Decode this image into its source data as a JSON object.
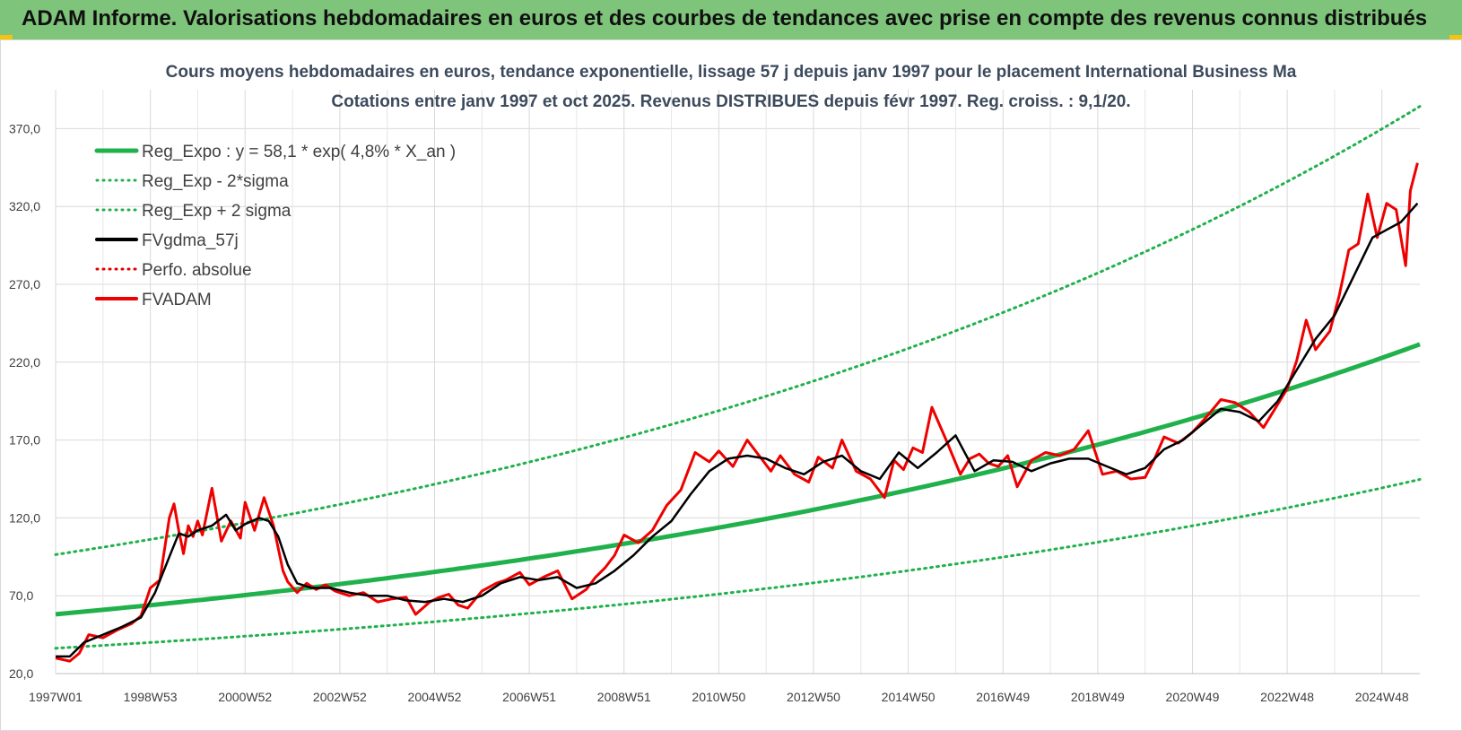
{
  "banner": {
    "title": "ADAM Informe. Valorisations hebdomadaires en euros et des courbes de tendances avec prise en compte des revenus connus distribués"
  },
  "chart_data": {
    "type": "line",
    "title_line1": "Cours moyens hebdomadaires en euros, tendance exponentielle, lissage 57 j depuis janv 1997 pour le placement International Business Ma",
    "title_line2": "Cotations entre janv 1997 et oct 2025. Revenus DISTRIBUES depuis févr 1997. Reg. croiss. : 9,1/20.",
    "x_range": [
      1997.0,
      2025.8
    ],
    "ylim": [
      20,
      395
    ],
    "y_ticks": [
      20,
      70,
      120,
      170,
      220,
      270,
      320,
      370
    ],
    "y_tick_labels": [
      "20,0",
      "70,0",
      "120,0",
      "170,0",
      "220,0",
      "270,0",
      "320,0",
      "370,0"
    ],
    "x_ticks": [
      1997.0,
      1999.0,
      2001.0,
      2003.0,
      2005.0,
      2007.0,
      2009.0,
      2011.0,
      2013.0,
      2015.0,
      2017.0,
      2019.0,
      2021.0,
      2023.0,
      2025.0
    ],
    "x_tick_labels": [
      "1997W01",
      "1998W53",
      "2000W52",
      "2002W52",
      "2004W52",
      "2006W51",
      "2008W51",
      "2010W50",
      "2012W50",
      "2014W50",
      "2016W49",
      "2018W49",
      "2020W49",
      "2022W48",
      "2024W48"
    ],
    "grid": true,
    "legend_position": "top-left",
    "regression": {
      "a": 58.1,
      "rate": 0.048,
      "sigma_upper_factor": 1.66,
      "sigma_lower_factor": 0.625
    },
    "series": [
      {
        "name": "Reg_Expo : y = 58,1 * exp( 4,8% *  X_an )",
        "color": "#21b14c",
        "style": "solid",
        "width": 5
      },
      {
        "name": "Reg_Exp - 2*sigma",
        "color": "#21b14c",
        "style": "dotted",
        "width": 3
      },
      {
        "name": "Reg_Exp + 2 sigma",
        "color": "#21b14c",
        "style": "dotted",
        "width": 3
      },
      {
        "name": "FVgdma_57j",
        "color": "#000000",
        "style": "solid",
        "width": 3
      },
      {
        "name": "Perfo. absolue",
        "color": "#e00000",
        "style": "dotted",
        "width": 3
      },
      {
        "name": "FVADAM",
        "color": "#ee0000",
        "style": "solid",
        "width": 3
      }
    ],
    "fvadam": {
      "x": [
        1997.0,
        1997.3,
        1997.5,
        1997.7,
        1998.0,
        1998.3,
        1998.6,
        1998.8,
        1999.0,
        1999.2,
        1999.4,
        1999.5,
        1999.6,
        1999.7,
        1999.8,
        1999.9,
        2000.0,
        2000.1,
        2000.3,
        2000.5,
        2000.7,
        2000.9,
        2001.0,
        2001.2,
        2001.4,
        2001.6,
        2001.8,
        2001.9,
        2002.1,
        2002.3,
        2002.5,
        2002.7,
        2002.9,
        2003.2,
        2003.5,
        2003.8,
        2004.1,
        2004.4,
        2004.6,
        2004.9,
        2005.1,
        2005.3,
        2005.5,
        2005.7,
        2006.0,
        2006.3,
        2006.5,
        2006.8,
        2007.0,
        2007.3,
        2007.6,
        2007.9,
        2008.2,
        2008.4,
        2008.6,
        2008.8,
        2009.0,
        2009.3,
        2009.6,
        2009.9,
        2010.2,
        2010.5,
        2010.8,
        2011.0,
        2011.3,
        2011.6,
        2011.9,
        2012.1,
        2012.3,
        2012.6,
        2012.9,
        2013.1,
        2013.4,
        2013.6,
        2013.9,
        2014.2,
        2014.5,
        2014.7,
        2014.9,
        2015.1,
        2015.3,
        2015.5,
        2015.8,
        2016.1,
        2016.3,
        2016.5,
        2016.7,
        2016.9,
        2017.1,
        2017.3,
        2017.6,
        2017.9,
        2018.2,
        2018.5,
        2018.8,
        2019.1,
        2019.4,
        2019.7,
        2020.0,
        2020.2,
        2020.4,
        2020.7,
        2021.0,
        2021.3,
        2021.6,
        2021.9,
        2022.2,
        2022.5,
        2022.8,
        2023.0,
        2023.2,
        2023.4,
        2023.6,
        2023.9,
        2024.1,
        2024.3,
        2024.5,
        2024.7,
        2024.9,
        2025.1,
        2025.3,
        2025.5,
        2025.6,
        2025.75
      ],
      "y": [
        30,
        28,
        33,
        45,
        43,
        48,
        52,
        57,
        75,
        80,
        120,
        129,
        112,
        97,
        115,
        108,
        118,
        109,
        139,
        105,
        118,
        107,
        130,
        112,
        133,
        115,
        86,
        79,
        72,
        78,
        74,
        77,
        73,
        70,
        72,
        66,
        68,
        69,
        58,
        66,
        69,
        71,
        64,
        62,
        73,
        78,
        80,
        85,
        77,
        82,
        86,
        68,
        74,
        82,
        88,
        96,
        109,
        104,
        112,
        128,
        138,
        162,
        156,
        163,
        153,
        170,
        158,
        150,
        160,
        148,
        143,
        159,
        152,
        170,
        150,
        145,
        133,
        157,
        151,
        165,
        162,
        191,
        170,
        148,
        158,
        161,
        155,
        153,
        160,
        140,
        157,
        162,
        160,
        164,
        176,
        148,
        150,
        145,
        146,
        158,
        172,
        168,
        175,
        185,
        196,
        194,
        188,
        178,
        193,
        203,
        221,
        247,
        228,
        240,
        263,
        292,
        296,
        328,
        300,
        322,
        318,
        282,
        330,
        348
      ]
    },
    "fvgdma": {
      "x": [
        1997.0,
        1997.3,
        1997.6,
        1998.0,
        1998.4,
        1998.8,
        1999.1,
        1999.4,
        1999.6,
        1999.8,
        2000.0,
        2000.3,
        2000.6,
        2000.8,
        2001.0,
        2001.3,
        2001.5,
        2001.7,
        2001.9,
        2002.1,
        2002.4,
        2002.8,
        2003.2,
        2003.6,
        2004.0,
        2004.4,
        2004.8,
        2005.2,
        2005.6,
        2006.0,
        2006.4,
        2006.8,
        2007.2,
        2007.6,
        2008.0,
        2008.4,
        2008.8,
        2009.2,
        2009.6,
        2010.0,
        2010.4,
        2010.8,
        2011.2,
        2011.6,
        2012.0,
        2012.4,
        2012.8,
        2013.2,
        2013.6,
        2014.0,
        2014.4,
        2014.8,
        2015.2,
        2015.6,
        2016.0,
        2016.4,
        2016.8,
        2017.2,
        2017.6,
        2018.0,
        2018.4,
        2018.8,
        2019.2,
        2019.6,
        2020.0,
        2020.4,
        2020.8,
        2021.2,
        2021.6,
        2022.0,
        2022.4,
        2022.8,
        2023.2,
        2023.6,
        2024.0,
        2024.4,
        2024.8,
        2025.1,
        2025.4,
        2025.75
      ],
      "y": [
        31,
        31,
        40,
        45,
        50,
        56,
        72,
        95,
        110,
        108,
        112,
        115,
        122,
        112,
        116,
        120,
        118,
        108,
        90,
        78,
        75,
        75,
        72,
        70,
        70,
        67,
        66,
        68,
        66,
        70,
        78,
        82,
        80,
        82,
        75,
        78,
        86,
        96,
        108,
        118,
        135,
        150,
        158,
        160,
        158,
        152,
        148,
        156,
        160,
        150,
        145,
        162,
        152,
        162,
        173,
        150,
        157,
        156,
        150,
        155,
        158,
        158,
        153,
        148,
        152,
        164,
        170,
        180,
        190,
        188,
        182,
        195,
        215,
        235,
        250,
        275,
        300,
        305,
        310,
        322
      ]
    }
  }
}
